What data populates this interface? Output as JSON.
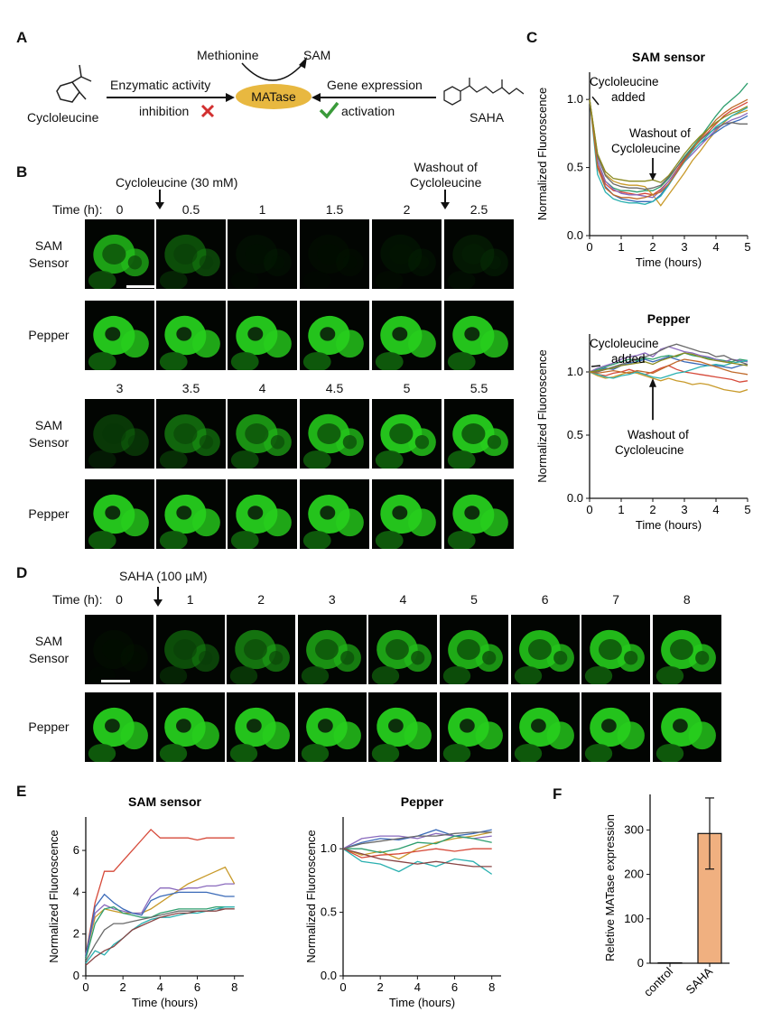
{
  "panel_labels": {
    "A": "A",
    "B": "B",
    "C": "C",
    "D": "D",
    "E": "E",
    "F": "F"
  },
  "panelA": {
    "methionine": "Methionine",
    "sam": "SAM",
    "matase": "MATase",
    "enzymatic": "Enzymatic activity",
    "inhibition": "inhibition",
    "gene_expression": "Gene expression",
    "activation": "activation",
    "cycloleucine": "Cycloleucine",
    "saha": "SAHA",
    "colors": {
      "ellipse": "#e8b840",
      "cross": "#d23030",
      "check": "#3a9a3a"
    }
  },
  "panelB": {
    "treatment": "Cycloleucine (30 mM)",
    "washout": "Washout of\nCycloleucine",
    "time_label": "Time (h):",
    "times_top": [
      "0",
      "0.5",
      "1",
      "1.5",
      "2",
      "2.5"
    ],
    "times_bottom": [
      "3",
      "3.5",
      "4",
      "4.5",
      "5",
      "5.5"
    ],
    "row_labels": [
      "SAM\nSensor",
      "Pepper",
      "SAM\nSensor",
      "Pepper"
    ],
    "sam_intensity_top": [
      0.85,
      0.55,
      0.15,
      0.12,
      0.18,
      0.25
    ],
    "pepper_intensity_top": [
      0.95,
      0.95,
      0.95,
      0.95,
      0.95,
      0.95
    ],
    "sam_intensity_bottom": [
      0.45,
      0.65,
      0.8,
      0.9,
      0.95,
      0.95
    ],
    "pepper_intensity_bottom": [
      0.95,
      0.95,
      0.95,
      0.95,
      0.95,
      0.95
    ]
  },
  "panelD": {
    "treatment": "SAHA (100 µM)",
    "time_label": "Time (h):",
    "times": [
      "0",
      "1",
      "2",
      "3",
      "4",
      "5",
      "6",
      "7",
      "8"
    ],
    "row_labels": [
      "SAM\nSensor",
      "Pepper"
    ],
    "sam_intensity": [
      0.12,
      0.55,
      0.7,
      0.8,
      0.85,
      0.88,
      0.9,
      0.92,
      0.92
    ],
    "pepper_intensity": [
      0.95,
      0.95,
      0.95,
      0.95,
      0.95,
      0.95,
      0.95,
      0.95,
      0.95
    ]
  },
  "chart_data": [
    {
      "id": "C_sam",
      "type": "line",
      "title": "SAM sensor",
      "xlabel": "Time (hours)",
      "ylabel": "Normalized Fluoroscence",
      "xlim": [
        0,
        5
      ],
      "ylim": [
        0,
        1.2
      ],
      "xticks": [
        0,
        1,
        2,
        3,
        4,
        5
      ],
      "yticks": [
        0.0,
        0.5,
        1.0
      ],
      "ytick_labels": [
        "0.0",
        "0.5",
        "1.0"
      ],
      "annotations": [
        "Cycloleucine\nadded",
        "Washout of\nCycloleucine"
      ],
      "x": [
        0,
        0.25,
        0.5,
        0.75,
        1,
        1.25,
        1.5,
        1.75,
        2,
        2.25,
        2.5,
        2.75,
        3,
        3.25,
        3.5,
        3.75,
        4,
        4.25,
        4.5,
        4.75,
        5
      ],
      "series": [
        {
          "color": "#2e9e6e",
          "values": [
            1.0,
            0.55,
            0.4,
            0.35,
            0.33,
            0.33,
            0.32,
            0.33,
            0.33,
            0.36,
            0.42,
            0.5,
            0.58,
            0.65,
            0.72,
            0.8,
            0.88,
            0.95,
            1.0,
            1.05,
            1.12
          ]
        },
        {
          "color": "#d64a3a",
          "values": [
            1.0,
            0.52,
            0.38,
            0.33,
            0.32,
            0.31,
            0.3,
            0.31,
            0.3,
            0.34,
            0.4,
            0.48,
            0.56,
            0.64,
            0.7,
            0.76,
            0.82,
            0.88,
            0.92,
            0.95,
            0.98
          ]
        },
        {
          "color": "#c89a2a",
          "values": [
            1.0,
            0.6,
            0.45,
            0.4,
            0.38,
            0.37,
            0.37,
            0.36,
            0.3,
            0.22,
            0.3,
            0.38,
            0.46,
            0.55,
            0.62,
            0.7,
            0.77,
            0.83,
            0.88,
            0.9,
            0.92
          ]
        },
        {
          "color": "#3a6ab8",
          "values": [
            1.0,
            0.5,
            0.36,
            0.3,
            0.27,
            0.26,
            0.25,
            0.25,
            0.25,
            0.3,
            0.38,
            0.46,
            0.55,
            0.62,
            0.68,
            0.72,
            0.76,
            0.8,
            0.83,
            0.85,
            0.88
          ]
        },
        {
          "color": "#8a6abd",
          "values": [
            1.0,
            0.55,
            0.4,
            0.34,
            0.31,
            0.3,
            0.3,
            0.29,
            0.28,
            0.33,
            0.4,
            0.47,
            0.54,
            0.6,
            0.66,
            0.72,
            0.78,
            0.82,
            0.85,
            0.87,
            0.9
          ]
        },
        {
          "color": "#6a6a6a",
          "values": [
            1.0,
            0.58,
            0.44,
            0.38,
            0.36,
            0.35,
            0.35,
            0.34,
            0.35,
            0.37,
            0.43,
            0.5,
            0.57,
            0.64,
            0.7,
            0.75,
            0.79,
            0.82,
            0.83,
            0.82,
            0.82
          ]
        },
        {
          "color": "#2ab0b0",
          "values": [
            1.0,
            0.45,
            0.32,
            0.27,
            0.25,
            0.24,
            0.24,
            0.23,
            0.25,
            0.29,
            0.37,
            0.46,
            0.54,
            0.62,
            0.68,
            0.74,
            0.8,
            0.84,
            0.88,
            0.91,
            0.94
          ]
        },
        {
          "color": "#c06a2a",
          "values": [
            1.0,
            0.5,
            0.35,
            0.3,
            0.28,
            0.28,
            0.27,
            0.28,
            0.3,
            0.32,
            0.38,
            0.46,
            0.55,
            0.63,
            0.71,
            0.78,
            0.85,
            0.9,
            0.94,
            0.97,
            1.0
          ]
        },
        {
          "color": "#8a8a20",
          "values": [
            1.0,
            0.6,
            0.47,
            0.42,
            0.41,
            0.4,
            0.4,
            0.4,
            0.41,
            0.39,
            0.44,
            0.52,
            0.6,
            0.67,
            0.73,
            0.78,
            0.83,
            0.87,
            0.9,
            0.92,
            0.95
          ]
        }
      ]
    },
    {
      "id": "C_pepper",
      "type": "line",
      "title": "Pepper",
      "xlabel": "Time (hours)",
      "ylabel": "Normalized Fluoroscence",
      "xlim": [
        0,
        5
      ],
      "ylim": [
        0,
        1.3
      ],
      "xticks": [
        0,
        1,
        2,
        3,
        4,
        5
      ],
      "yticks": [
        0.0,
        0.5,
        1.0
      ],
      "ytick_labels": [
        "0.0",
        "0.5",
        "1.0"
      ],
      "annotations": [
        "Cycloleucine\nadded",
        "Washout of\nCycloleucine"
      ],
      "x": [
        0,
        0.25,
        0.5,
        0.75,
        1,
        1.25,
        1.5,
        1.75,
        2,
        2.25,
        2.5,
        2.75,
        3,
        3.25,
        3.5,
        3.75,
        4,
        4.25,
        4.5,
        4.75,
        5
      ],
      "series": [
        {
          "color": "#2e9e6e",
          "values": [
            1.0,
            1.02,
            1.04,
            1.06,
            1.08,
            1.1,
            1.09,
            1.11,
            1.1,
            1.12,
            1.13,
            1.12,
            1.15,
            1.13,
            1.12,
            1.11,
            1.1,
            1.09,
            1.08,
            1.1,
            1.09
          ]
        },
        {
          "color": "#d64a3a",
          "values": [
            1.0,
            0.98,
            0.97,
            0.99,
            1.0,
            1.02,
            1.0,
            0.98,
            1.0,
            1.03,
            1.05,
            1.02,
            1.0,
            0.99,
            0.98,
            0.97,
            0.96,
            0.95,
            0.94,
            0.92,
            0.93
          ]
        },
        {
          "color": "#c89a2a",
          "values": [
            1.0,
            0.97,
            0.95,
            0.96,
            0.98,
            1.0,
            0.99,
            0.97,
            0.95,
            0.93,
            0.95,
            0.93,
            0.92,
            0.9,
            0.91,
            0.9,
            0.88,
            0.86,
            0.85,
            0.84,
            0.86
          ]
        },
        {
          "color": "#3a6ab8",
          "values": [
            1.0,
            1.01,
            1.03,
            1.02,
            1.05,
            1.07,
            1.08,
            1.1,
            1.08,
            1.1,
            1.12,
            1.1,
            1.08,
            1.07,
            1.06,
            1.05,
            1.05,
            1.04,
            1.03,
            1.05,
            1.06
          ]
        },
        {
          "color": "#8a6abd",
          "values": [
            1.0,
            1.03,
            1.05,
            1.07,
            1.1,
            1.12,
            1.13,
            1.15,
            1.12,
            1.18,
            1.2,
            1.18,
            1.16,
            1.15,
            1.13,
            1.12,
            1.1,
            1.08,
            1.1,
            1.09,
            1.08
          ]
        },
        {
          "color": "#6a6a6a",
          "values": [
            1.0,
            1.0,
            1.02,
            1.04,
            1.06,
            1.08,
            1.1,
            1.12,
            1.14,
            1.17,
            1.2,
            1.22,
            1.2,
            1.18,
            1.16,
            1.15,
            1.12,
            1.13,
            1.1,
            1.08,
            1.06
          ]
        },
        {
          "color": "#2ab0b0",
          "values": [
            1.0,
            0.98,
            0.96,
            0.95,
            0.97,
            0.98,
            1.0,
            0.98,
            0.96,
            0.95,
            0.97,
            0.99,
            1.0,
            1.02,
            1.04,
            1.05,
            1.06,
            1.05,
            1.07,
            1.08,
            1.09
          ]
        },
        {
          "color": "#c06a2a",
          "values": [
            1.0,
            0.99,
            1.0,
            1.01,
            1.0,
            0.99,
            1.01,
            1.0,
            0.99,
            1.02,
            1.05,
            1.08,
            1.1,
            1.09,
            1.08,
            1.06,
            1.04,
            1.02,
            1.0,
            0.99,
            0.98
          ]
        },
        {
          "color": "#8a8a20",
          "values": [
            1.0,
            1.01,
            1.02,
            1.03,
            1.05,
            1.06,
            1.07,
            1.08,
            1.06,
            1.09,
            1.11,
            1.13,
            1.15,
            1.14,
            1.12,
            1.1,
            1.09,
            1.08,
            1.07,
            1.06,
            1.05
          ]
        }
      ]
    },
    {
      "id": "E_sam",
      "type": "line",
      "title": "SAM sensor",
      "xlabel": "Time (hours)",
      "ylabel": "Normalized Fluoroscence",
      "xlim": [
        0,
        8.5
      ],
      "ylim": [
        0,
        7.6
      ],
      "xticks": [
        0,
        2,
        4,
        6,
        8
      ],
      "yticks": [
        0,
        2,
        4,
        6
      ],
      "ytick_labels": [
        "0",
        "2",
        "4",
        "6"
      ],
      "x": [
        0,
        0.5,
        1,
        1.5,
        2,
        2.5,
        3,
        3.5,
        4,
        4.5,
        5,
        5.5,
        6,
        6.5,
        7,
        7.5,
        8
      ],
      "series": [
        {
          "color": "#d64a3a",
          "values": [
            1.0,
            3.5,
            5.0,
            5.0,
            5.5,
            6.0,
            6.5,
            7.0,
            6.6,
            6.6,
            6.6,
            6.6,
            6.5,
            6.6,
            6.6,
            6.6,
            6.6
          ]
        },
        {
          "color": "#c89a2a",
          "values": [
            1.0,
            2.8,
            3.2,
            3.1,
            3.0,
            3.0,
            3.0,
            3.2,
            3.5,
            3.8,
            4.1,
            4.4,
            4.6,
            4.8,
            5.0,
            5.2,
            4.4
          ]
        },
        {
          "color": "#8a6abd",
          "values": [
            1.0,
            3.0,
            3.4,
            3.2,
            3.1,
            3.0,
            3.0,
            3.8,
            4.2,
            4.2,
            4.1,
            4.2,
            4.2,
            4.3,
            4.3,
            4.4,
            4.4
          ]
        },
        {
          "color": "#3a6ab8",
          "values": [
            0.9,
            3.3,
            3.9,
            3.5,
            3.2,
            3.0,
            2.9,
            3.6,
            3.8,
            3.9,
            4.0,
            4.0,
            4.0,
            4.0,
            3.9,
            3.8,
            3.8
          ]
        },
        {
          "color": "#2e9e6e",
          "values": [
            0.8,
            2.5,
            3.2,
            3.3,
            3.0,
            2.9,
            2.8,
            2.8,
            3.0,
            3.1,
            3.2,
            3.2,
            3.2,
            3.2,
            3.3,
            3.3,
            3.3
          ]
        },
        {
          "color": "#6a6a6a",
          "values": [
            0.7,
            1.5,
            2.2,
            2.5,
            2.5,
            2.6,
            2.7,
            2.8,
            2.9,
            3.0,
            3.1,
            3.1,
            3.1,
            3.1,
            3.2,
            3.2,
            3.2
          ]
        },
        {
          "color": "#2ab0b0",
          "values": [
            0.6,
            1.2,
            1.0,
            1.5,
            1.8,
            2.2,
            2.5,
            2.7,
            2.8,
            2.8,
            2.9,
            3.0,
            3.0,
            3.1,
            3.2,
            3.3,
            3.3
          ]
        },
        {
          "color": "#884444",
          "values": [
            0.5,
            0.9,
            1.2,
            1.4,
            1.8,
            2.2,
            2.4,
            2.6,
            2.8,
            2.9,
            3.0,
            3.0,
            3.1,
            3.1,
            3.1,
            3.2,
            3.2
          ]
        }
      ]
    },
    {
      "id": "E_pepper",
      "type": "line",
      "title": "Pepper",
      "xlabel": "Time (hours)",
      "ylabel": "Normalized Fluoroscence",
      "xlim": [
        0,
        8.5
      ],
      "ylim": [
        0,
        1.25
      ],
      "xticks": [
        0,
        2,
        4,
        6,
        8
      ],
      "yticks": [
        0.0,
        0.5,
        1.0
      ],
      "ytick_labels": [
        "0.0",
        "0.5",
        "1.0"
      ],
      "x": [
        0,
        1,
        2,
        3,
        4,
        5,
        6,
        7,
        8
      ],
      "series": [
        {
          "color": "#3a6ab8",
          "values": [
            1.0,
            1.05,
            1.08,
            1.07,
            1.1,
            1.15,
            1.1,
            1.12,
            1.15
          ]
        },
        {
          "color": "#c89a2a",
          "values": [
            1.0,
            0.95,
            0.98,
            0.92,
            1.0,
            1.05,
            1.08,
            1.1,
            1.13
          ]
        },
        {
          "color": "#8a6abd",
          "values": [
            1.0,
            1.08,
            1.1,
            1.1,
            1.08,
            1.12,
            1.1,
            1.08,
            1.1
          ]
        },
        {
          "color": "#2e9e6e",
          "values": [
            1.0,
            1.0,
            0.97,
            1.0,
            1.05,
            1.04,
            1.1,
            1.08,
            1.05
          ]
        },
        {
          "color": "#d64a3a",
          "values": [
            1.0,
            0.93,
            0.95,
            0.96,
            0.98,
            1.0,
            0.98,
            1.0,
            1.0
          ]
        },
        {
          "color": "#2ab0b0",
          "values": [
            1.0,
            0.9,
            0.88,
            0.82,
            0.9,
            0.86,
            0.92,
            0.9,
            0.8
          ]
        },
        {
          "color": "#6a6a6a",
          "values": [
            1.0,
            1.04,
            1.06,
            1.08,
            1.1,
            1.1,
            1.12,
            1.13,
            1.13
          ]
        },
        {
          "color": "#884444",
          "values": [
            1.0,
            0.96,
            0.92,
            0.9,
            0.88,
            0.9,
            0.88,
            0.86,
            0.86
          ]
        }
      ]
    },
    {
      "id": "F",
      "type": "bar",
      "title": "",
      "categories": [
        "control",
        "SAHA"
      ],
      "values": [
        1,
        292
      ],
      "errors": [
        0,
        80
      ],
      "ylabel": "Reletive MATase expression",
      "ylim": [
        0,
        380
      ],
      "yticks": [
        0,
        100,
        200,
        300
      ],
      "ytick_labels": [
        "0",
        "100",
        "200",
        "300"
      ],
      "bar_color": "#f0b080"
    }
  ]
}
